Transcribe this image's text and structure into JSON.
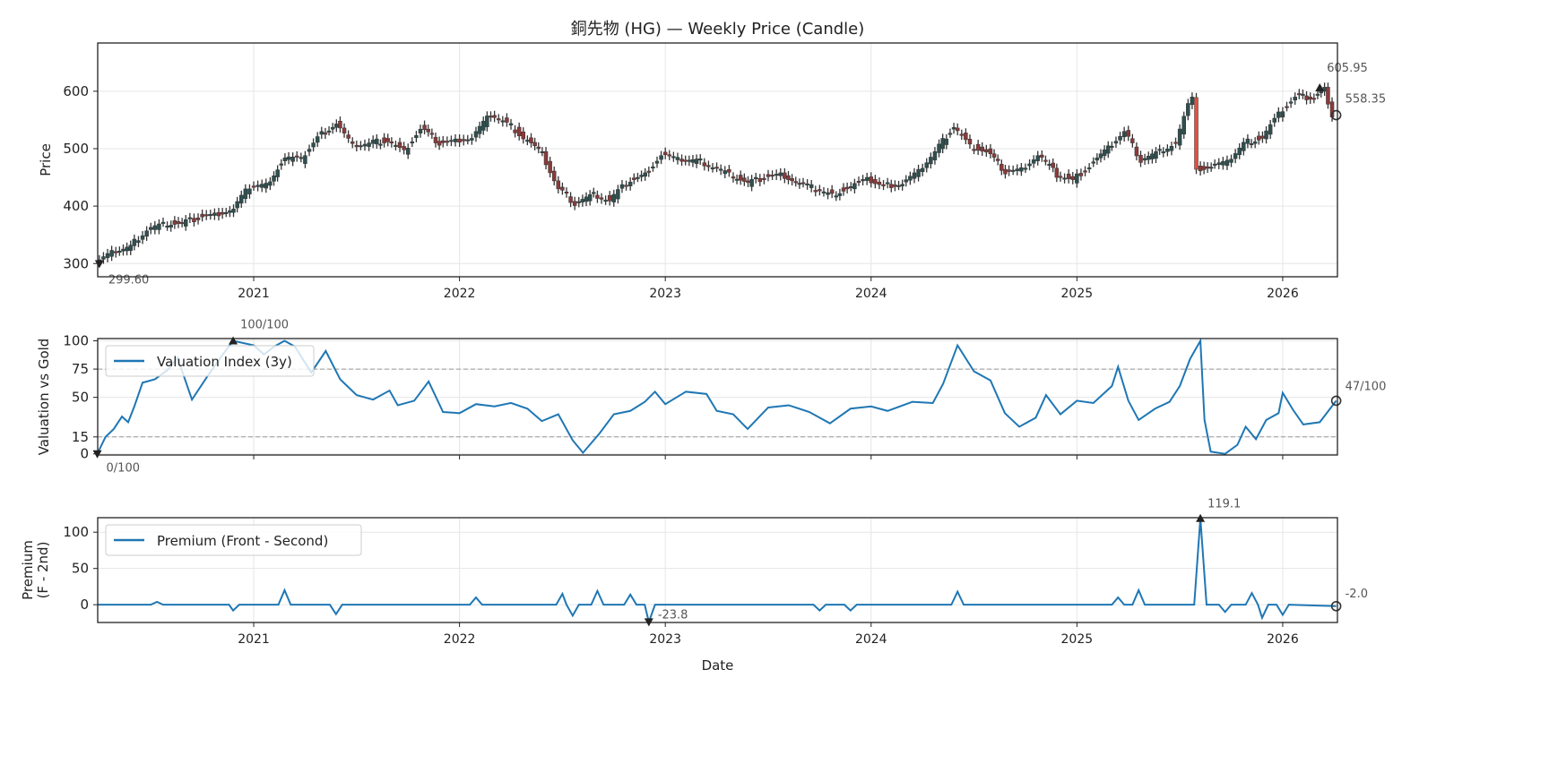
{
  "chart_data": [
    {
      "type": "candlestick",
      "title": "銅先物 (HG) — Weekly Price (Candle)",
      "ylabel": "Price",
      "ylim": [
        277,
        684
      ],
      "xlim": [
        2020.242,
        2026.266
      ],
      "yticks": [
        300,
        400,
        500,
        600
      ],
      "xticks": [
        "2021",
        "2022",
        "2023",
        "2024",
        "2025",
        "2026"
      ],
      "grid": true,
      "colors": {
        "up": "#2f4f4f",
        "down": "#8b3a3a",
        "spike": "#e05040"
      },
      "series": [
        [
          2020.25,
          300
        ],
        [
          2020.33,
          318
        ],
        [
          2020.42,
          330
        ],
        [
          2020.5,
          360
        ],
        [
          2020.58,
          368
        ],
        [
          2020.67,
          370
        ],
        [
          2020.75,
          380
        ],
        [
          2020.83,
          385
        ],
        [
          2020.92,
          395
        ],
        [
          2021.0,
          435
        ],
        [
          2021.08,
          438
        ],
        [
          2021.17,
          485
        ],
        [
          2021.25,
          480
        ],
        [
          2021.33,
          520
        ],
        [
          2021.42,
          545
        ],
        [
          2021.5,
          505
        ],
        [
          2021.58,
          510
        ],
        [
          2021.67,
          515
        ],
        [
          2021.75,
          495
        ],
        [
          2021.83,
          535
        ],
        [
          2021.92,
          510
        ],
        [
          2022.0,
          515
        ],
        [
          2022.08,
          520
        ],
        [
          2022.17,
          560
        ],
        [
          2022.25,
          545
        ],
        [
          2022.33,
          520
        ],
        [
          2022.42,
          490
        ],
        [
          2022.5,
          430
        ],
        [
          2022.58,
          405
        ],
        [
          2022.67,
          420
        ],
        [
          2022.75,
          410
        ],
        [
          2022.83,
          440
        ],
        [
          2022.92,
          455
        ],
        [
          2023.0,
          490
        ],
        [
          2023.08,
          480
        ],
        [
          2023.17,
          480
        ],
        [
          2023.25,
          470
        ],
        [
          2023.33,
          455
        ],
        [
          2023.42,
          440
        ],
        [
          2023.5,
          450
        ],
        [
          2023.58,
          455
        ],
        [
          2023.67,
          440
        ],
        [
          2023.75,
          430
        ],
        [
          2023.83,
          420
        ],
        [
          2023.92,
          435
        ],
        [
          2024.0,
          445
        ],
        [
          2024.08,
          435
        ],
        [
          2024.17,
          440
        ],
        [
          2024.25,
          460
        ],
        [
          2024.33,
          495
        ],
        [
          2024.42,
          540
        ],
        [
          2024.5,
          505
        ],
        [
          2024.58,
          495
        ],
        [
          2024.67,
          460
        ],
        [
          2024.75,
          465
        ],
        [
          2024.83,
          490
        ],
        [
          2024.92,
          455
        ],
        [
          2025.0,
          445
        ],
        [
          2025.08,
          470
        ],
        [
          2025.17,
          500
        ],
        [
          2025.25,
          530
        ],
        [
          2025.33,
          480
        ],
        [
          2025.42,
          495
        ],
        [
          2025.5,
          510
        ],
        [
          2025.58,
          595
        ],
        [
          2025.6,
          465
        ],
        [
          2025.67,
          470
        ],
        [
          2025.75,
          475
        ],
        [
          2025.83,
          510
        ],
        [
          2025.92,
          520
        ],
        [
          2026.0,
          560
        ],
        [
          2026.08,
          590
        ],
        [
          2026.17,
          590
        ],
        [
          2026.22,
          605
        ],
        [
          2026.26,
          558
        ]
      ],
      "annotations": {
        "min": {
          "t": 2020.25,
          "value": 299.6,
          "label": "299.60"
        },
        "max": {
          "t": 2026.18,
          "value": 605.95,
          "label": "605.95"
        },
        "last": {
          "t": 2026.26,
          "value": 558.35,
          "label": "558.35"
        }
      }
    },
    {
      "type": "line",
      "ylabel": "Valuation vs Gold",
      "ylim": [
        -1,
        102
      ],
      "yticks": [
        0,
        15,
        50,
        75,
        100
      ],
      "hlines": [
        15,
        75
      ],
      "legend": "Valuation Index (3y)",
      "legend_position": "top-left",
      "color": "#1f77b4",
      "series": [
        [
          2020.24,
          0
        ],
        [
          2020.28,
          15
        ],
        [
          2020.32,
          22
        ],
        [
          2020.36,
          33
        ],
        [
          2020.39,
          28
        ],
        [
          2020.42,
          42
        ],
        [
          2020.46,
          63
        ],
        [
          2020.52,
          66
        ],
        [
          2020.58,
          74
        ],
        [
          2020.63,
          85
        ],
        [
          2020.7,
          48
        ],
        [
          2020.78,
          70
        ],
        [
          2020.85,
          88
        ],
        [
          2020.9,
          100
        ],
        [
          2021.0,
          96
        ],
        [
          2021.05,
          88
        ],
        [
          2021.1,
          95
        ],
        [
          2021.15,
          100
        ],
        [
          2021.2,
          95
        ],
        [
          2021.28,
          72
        ],
        [
          2021.35,
          91
        ],
        [
          2021.42,
          66
        ],
        [
          2021.5,
          52
        ],
        [
          2021.58,
          48
        ],
        [
          2021.66,
          56
        ],
        [
          2021.7,
          43
        ],
        [
          2021.78,
          47
        ],
        [
          2021.85,
          64
        ],
        [
          2021.92,
          37
        ],
        [
          2022.0,
          36
        ],
        [
          2022.08,
          44
        ],
        [
          2022.17,
          42
        ],
        [
          2022.25,
          45
        ],
        [
          2022.33,
          40
        ],
        [
          2022.4,
          29
        ],
        [
          2022.48,
          35
        ],
        [
          2022.55,
          12
        ],
        [
          2022.6,
          1
        ],
        [
          2022.68,
          18
        ],
        [
          2022.75,
          35
        ],
        [
          2022.83,
          38
        ],
        [
          2022.9,
          46
        ],
        [
          2022.95,
          55
        ],
        [
          2023.0,
          44
        ],
        [
          2023.1,
          55
        ],
        [
          2023.2,
          53
        ],
        [
          2023.25,
          38
        ],
        [
          2023.33,
          35
        ],
        [
          2023.4,
          22
        ],
        [
          2023.5,
          41
        ],
        [
          2023.6,
          43
        ],
        [
          2023.7,
          37
        ],
        [
          2023.8,
          27
        ],
        [
          2023.9,
          40
        ],
        [
          2024.0,
          42
        ],
        [
          2024.08,
          38
        ],
        [
          2024.2,
          46
        ],
        [
          2024.3,
          45
        ],
        [
          2024.35,
          62
        ],
        [
          2024.42,
          96
        ],
        [
          2024.5,
          73
        ],
        [
          2024.58,
          65
        ],
        [
          2024.65,
          36
        ],
        [
          2024.72,
          24
        ],
        [
          2024.8,
          32
        ],
        [
          2024.85,
          52
        ],
        [
          2024.92,
          35
        ],
        [
          2025.0,
          47
        ],
        [
          2025.08,
          45
        ],
        [
          2025.17,
          60
        ],
        [
          2025.2,
          77
        ],
        [
          2025.25,
          47
        ],
        [
          2025.3,
          30
        ],
        [
          2025.38,
          40
        ],
        [
          2025.45,
          46
        ],
        [
          2025.5,
          60
        ],
        [
          2025.55,
          84
        ],
        [
          2025.6,
          100
        ],
        [
          2025.62,
          30
        ],
        [
          2025.65,
          2
        ],
        [
          2025.72,
          0
        ],
        [
          2025.78,
          8
        ],
        [
          2025.82,
          24
        ],
        [
          2025.87,
          13
        ],
        [
          2025.92,
          30
        ],
        [
          2025.98,
          36
        ],
        [
          2026.0,
          54
        ],
        [
          2026.05,
          39
        ],
        [
          2026.1,
          26
        ],
        [
          2026.18,
          28
        ],
        [
          2026.26,
          47
        ]
      ],
      "annotations": {
        "max": {
          "t": 2020.9,
          "value": 100,
          "label": "100/100"
        },
        "min": {
          "t": 2020.24,
          "value": 0,
          "label": "0/100"
        },
        "last": {
          "t": 2026.26,
          "value": 47,
          "label": "47/100"
        }
      }
    },
    {
      "type": "line",
      "xlabel": "Date",
      "ylabel": "Premium\n(F - 2nd)",
      "ylabel_lines": [
        "Premium",
        "(F - 2nd)"
      ],
      "ylim": [
        -24.5,
        120
      ],
      "yticks": [
        0,
        50,
        100
      ],
      "legend": "Premium (Front - Second)",
      "legend_position": "top-left",
      "color": "#1f77b4",
      "series": [
        [
          2020.24,
          0
        ],
        [
          2020.5,
          0
        ],
        [
          2020.53,
          4
        ],
        [
          2020.56,
          0
        ],
        [
          2020.88,
          0
        ],
        [
          2020.9,
          -8
        ],
        [
          2020.93,
          0
        ],
        [
          2021.12,
          0
        ],
        [
          2021.15,
          20
        ],
        [
          2021.18,
          0
        ],
        [
          2021.37,
          0
        ],
        [
          2021.4,
          -13
        ],
        [
          2021.43,
          0
        ],
        [
          2022.05,
          0
        ],
        [
          2022.08,
          10
        ],
        [
          2022.11,
          0
        ],
        [
          2022.47,
          0
        ],
        [
          2022.5,
          15
        ],
        [
          2022.52,
          0
        ],
        [
          2022.55,
          -15
        ],
        [
          2022.58,
          0
        ],
        [
          2022.64,
          0
        ],
        [
          2022.67,
          19
        ],
        [
          2022.7,
          0
        ],
        [
          2022.8,
          0
        ],
        [
          2022.83,
          14
        ],
        [
          2022.86,
          0
        ],
        [
          2022.9,
          0
        ],
        [
          2022.92,
          -23.8
        ],
        [
          2022.95,
          0
        ],
        [
          2023.72,
          0
        ],
        [
          2023.75,
          -8
        ],
        [
          2023.78,
          0
        ],
        [
          2023.87,
          0
        ],
        [
          2023.9,
          -8
        ],
        [
          2023.93,
          0
        ],
        [
          2024.39,
          0
        ],
        [
          2024.42,
          18
        ],
        [
          2024.45,
          0
        ],
        [
          2025.17,
          0
        ],
        [
          2025.2,
          10
        ],
        [
          2025.23,
          0
        ],
        [
          2025.27,
          0
        ],
        [
          2025.3,
          20
        ],
        [
          2025.33,
          0
        ],
        [
          2025.57,
          0
        ],
        [
          2025.6,
          119.1
        ],
        [
          2025.63,
          0
        ],
        [
          2025.69,
          0
        ],
        [
          2025.72,
          -10
        ],
        [
          2025.75,
          0
        ],
        [
          2025.82,
          0
        ],
        [
          2025.85,
          16
        ],
        [
          2025.88,
          0
        ],
        [
          2025.9,
          -18
        ],
        [
          2025.93,
          0
        ],
        [
          2025.97,
          0
        ],
        [
          2026.0,
          -14
        ],
        [
          2026.03,
          0
        ],
        [
          2026.26,
          -2
        ]
      ],
      "annotations": {
        "max": {
          "t": 2025.6,
          "value": 119.1,
          "label": "119.1"
        },
        "min": {
          "t": 2022.92,
          "value": -23.8,
          "label": "-23.8"
        },
        "last": {
          "t": 2026.26,
          "value": -2.0,
          "label": "-2.0"
        }
      }
    }
  ]
}
